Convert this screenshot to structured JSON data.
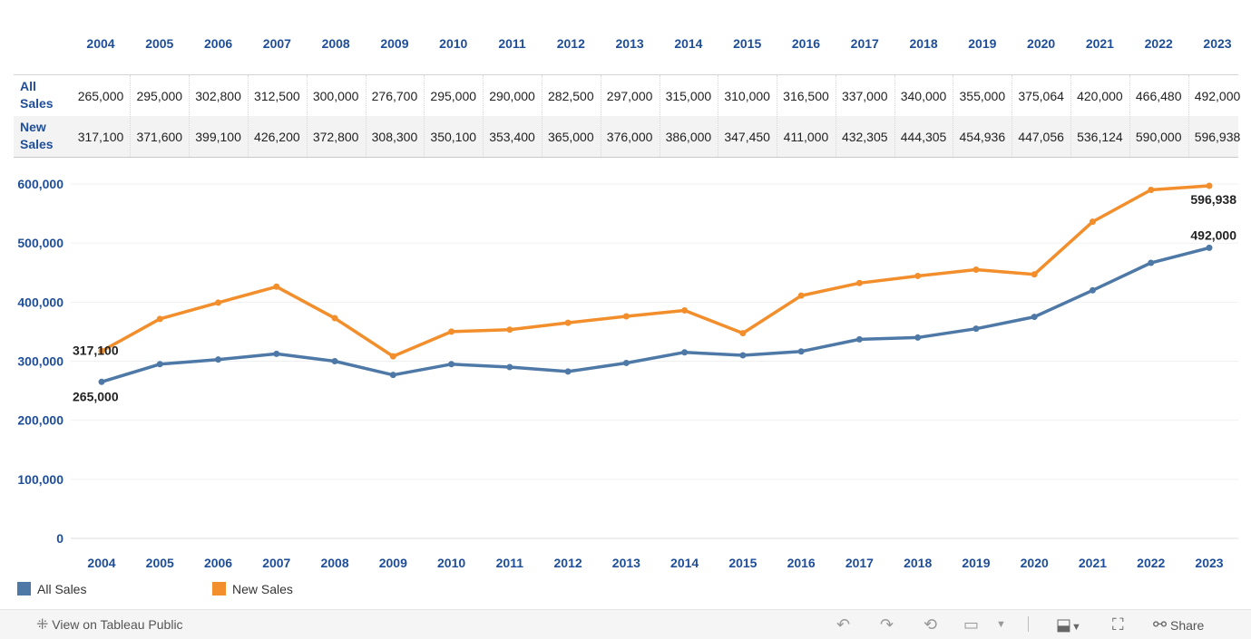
{
  "chart_data": {
    "type": "line",
    "title": "",
    "xlabel": "",
    "ylabel": "",
    "x": [
      "2004",
      "2005",
      "2006",
      "2007",
      "2008",
      "2009",
      "2010",
      "2011",
      "2012",
      "2013",
      "2014",
      "2015",
      "2016",
      "2017",
      "2018",
      "2019",
      "2020",
      "2021",
      "2022",
      "2023"
    ],
    "ylim": [
      0,
      600000
    ],
    "yticks": [
      0,
      100000,
      200000,
      300000,
      400000,
      500000,
      600000
    ],
    "ytick_labels": [
      "0",
      "100,000",
      "200,000",
      "300,000",
      "400,000",
      "500,000",
      "600,000"
    ],
    "grid": true,
    "legend_position": "bottom-left",
    "series": [
      {
        "name": "All Sales",
        "label_lines": [
          "All",
          "Sales"
        ],
        "color": "#4e79a7",
        "values": [
          265000,
          295000,
          302800,
          312500,
          300000,
          276700,
          295000,
          290000,
          282500,
          297000,
          315000,
          310000,
          316500,
          337000,
          340000,
          355000,
          375064,
          420000,
          466480,
          492000
        ],
        "display_values": [
          "265,000",
          "295,000",
          "302,800",
          "312,500",
          "300,000",
          "276,700",
          "295,000",
          "290,000",
          "282,500",
          "297,000",
          "315,000",
          "310,000",
          "316,500",
          "337,000",
          "340,000",
          "355,000",
          "375,064",
          "420,000",
          "466,480",
          "492,000"
        ],
        "first_label": "265,000",
        "last_label": "492,000"
      },
      {
        "name": "New Sales",
        "label_lines": [
          "New",
          "Sales"
        ],
        "color": "#f28e2b",
        "values": [
          317100,
          371600,
          399100,
          426200,
          372800,
          308300,
          350100,
          353400,
          365000,
          376000,
          386000,
          347450,
          411000,
          432305,
          444305,
          454936,
          447056,
          536124,
          590000,
          596938
        ],
        "display_values": [
          "317,100",
          "371,600",
          "399,100",
          "426,200",
          "372,800",
          "308,300",
          "350,100",
          "353,400",
          "365,000",
          "376,000",
          "386,000",
          "347,450",
          "411,000",
          "432,305",
          "444,305",
          "454,936",
          "447,056",
          "536,124",
          "590,000",
          "596,938"
        ],
        "first_label": "317,100",
        "last_label": "596,938"
      }
    ]
  },
  "toolbar": {
    "view_label": "View on Tableau Public",
    "share_label": "Share",
    "icons": [
      "tableau-logo-icon",
      "undo-icon",
      "redo-icon",
      "revert-icon",
      "refresh-icon",
      "dropdown-icon",
      "download-icon",
      "fullscreen-icon",
      "share-icon"
    ]
  }
}
